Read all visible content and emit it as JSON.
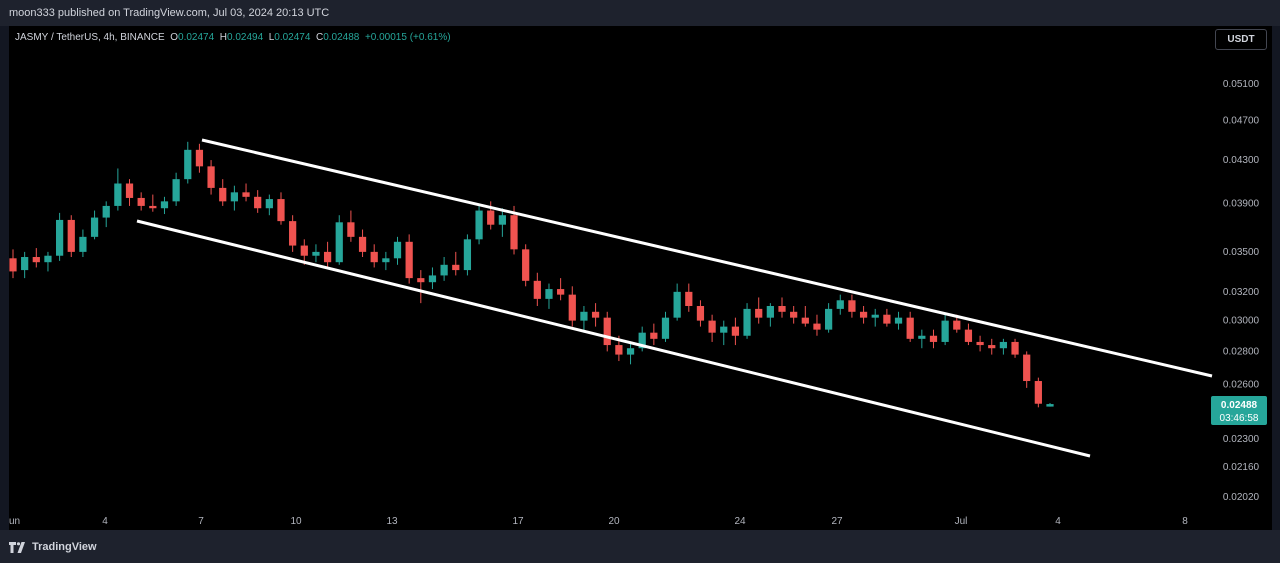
{
  "header": {
    "published_text": "moon333 published on TradingView.com, Jul 03, 2024 20:13 UTC"
  },
  "legend": {
    "symbol": "JASMY / TetherUS, 4h, BINANCE",
    "open_label": "O",
    "open": "0.02474",
    "high_label": "H",
    "high": "0.02494",
    "low_label": "L",
    "low": "0.02474",
    "close_label": "C",
    "close": "0.02488",
    "change": "+0.00015 (+0.61%)"
  },
  "unit_button": "USDT",
  "price_label": {
    "price": "0.02488",
    "countdown": "03:46:58",
    "color": "#26a69a"
  },
  "footer": {
    "brand": "TradingView"
  },
  "colors": {
    "up": "#26a69a",
    "down": "#ef5350",
    "background": "#000000",
    "trendline": "#ffffff"
  },
  "chart_data": {
    "type": "candlestick",
    "title": "JASMY / TetherUS, 4h, BINANCE",
    "y_scale": "log",
    "y_ticks": [
      "0.05100",
      "0.04700",
      "0.04300",
      "0.03900",
      "0.03500",
      "0.03200",
      "0.03000",
      "0.02800",
      "0.02600",
      "0.02300",
      "0.02160",
      "0.02020"
    ],
    "x_ticks": [
      "un",
      "4",
      "7",
      "10",
      "13",
      "17",
      "20",
      "24",
      "27",
      "Jul",
      "4",
      "8"
    ],
    "series": [
      {
        "values": [
          {
            "x": "Jun 2",
            "o": 0.0345,
            "h": 0.0352,
            "l": 0.033,
            "c": 0.0335
          },
          {
            "x": "Jun 3",
            "o": 0.0336,
            "h": 0.035,
            "l": 0.033,
            "c": 0.0346
          },
          {
            "x": "Jun 3",
            "o": 0.0346,
            "h": 0.0353,
            "l": 0.0338,
            "c": 0.0342
          },
          {
            "x": "Jun 3",
            "o": 0.0342,
            "h": 0.035,
            "l": 0.0335,
            "c": 0.0347
          },
          {
            "x": "Jun 4",
            "o": 0.0347,
            "h": 0.0382,
            "l": 0.0343,
            "c": 0.0376
          },
          {
            "x": "Jun 4",
            "o": 0.0376,
            "h": 0.038,
            "l": 0.0346,
            "c": 0.035
          },
          {
            "x": "Jun 4",
            "o": 0.035,
            "h": 0.0368,
            "l": 0.0346,
            "c": 0.0362
          },
          {
            "x": "Jun 5",
            "o": 0.0362,
            "h": 0.0384,
            "l": 0.036,
            "c": 0.0378
          },
          {
            "x": "Jun 5",
            "o": 0.0378,
            "h": 0.0392,
            "l": 0.037,
            "c": 0.0388
          },
          {
            "x": "Jun 5",
            "o": 0.0388,
            "h": 0.0422,
            "l": 0.0384,
            "c": 0.0408
          },
          {
            "x": "Jun 6",
            "o": 0.0408,
            "h": 0.0412,
            "l": 0.0388,
            "c": 0.0395
          },
          {
            "x": "Jun 6",
            "o": 0.0395,
            "h": 0.04,
            "l": 0.0384,
            "c": 0.0388
          },
          {
            "x": "Jun 6",
            "o": 0.0388,
            "h": 0.0398,
            "l": 0.0383,
            "c": 0.0386
          },
          {
            "x": "Jun 7",
            "o": 0.0386,
            "h": 0.0396,
            "l": 0.0381,
            "c": 0.0392
          },
          {
            "x": "Jun 7",
            "o": 0.0392,
            "h": 0.0418,
            "l": 0.0388,
            "c": 0.0412
          },
          {
            "x": "Jun 7",
            "o": 0.0412,
            "h": 0.0448,
            "l": 0.0408,
            "c": 0.044
          },
          {
            "x": "Jun 8",
            "o": 0.044,
            "h": 0.0446,
            "l": 0.0418,
            "c": 0.0424
          },
          {
            "x": "Jun 8",
            "o": 0.0424,
            "h": 0.043,
            "l": 0.0398,
            "c": 0.0404
          },
          {
            "x": "Jun 8",
            "o": 0.0404,
            "h": 0.0412,
            "l": 0.0388,
            "c": 0.0392
          },
          {
            "x": "Jun 9",
            "o": 0.0392,
            "h": 0.0406,
            "l": 0.0384,
            "c": 0.04
          },
          {
            "x": "Jun 9",
            "o": 0.04,
            "h": 0.0408,
            "l": 0.0392,
            "c": 0.0396
          },
          {
            "x": "Jun 10",
            "o": 0.0396,
            "h": 0.0402,
            "l": 0.0382,
            "c": 0.0386
          },
          {
            "x": "Jun 10",
            "o": 0.0386,
            "h": 0.0398,
            "l": 0.038,
            "c": 0.0394
          },
          {
            "x": "Jun 11",
            "o": 0.0394,
            "h": 0.04,
            "l": 0.0372,
            "c": 0.0375
          },
          {
            "x": "Jun 11",
            "o": 0.0375,
            "h": 0.038,
            "l": 0.035,
            "c": 0.0355
          },
          {
            "x": "Jun 11",
            "o": 0.0355,
            "h": 0.036,
            "l": 0.034,
            "c": 0.0347
          },
          {
            "x": "Jun 12",
            "o": 0.0347,
            "h": 0.0356,
            "l": 0.0342,
            "c": 0.035
          },
          {
            "x": "Jun 12",
            "o": 0.035,
            "h": 0.0358,
            "l": 0.0338,
            "c": 0.0342
          },
          {
            "x": "Jun 13",
            "o": 0.0342,
            "h": 0.038,
            "l": 0.034,
            "c": 0.0374
          },
          {
            "x": "Jun 13",
            "o": 0.0374,
            "h": 0.0384,
            "l": 0.0358,
            "c": 0.0362
          },
          {
            "x": "Jun 13",
            "o": 0.0362,
            "h": 0.0368,
            "l": 0.0346,
            "c": 0.035
          },
          {
            "x": "Jun 14",
            "o": 0.035,
            "h": 0.0356,
            "l": 0.0338,
            "c": 0.0342
          },
          {
            "x": "Jun 14",
            "o": 0.0342,
            "h": 0.035,
            "l": 0.0336,
            "c": 0.0345
          },
          {
            "x": "Jun 14",
            "o": 0.0345,
            "h": 0.0362,
            "l": 0.034,
            "c": 0.0358
          },
          {
            "x": "Jun 15",
            "o": 0.0358,
            "h": 0.0364,
            "l": 0.0326,
            "c": 0.033
          },
          {
            "x": "Jun 15",
            "o": 0.033,
            "h": 0.0336,
            "l": 0.0312,
            "c": 0.0327
          },
          {
            "x": "Jun 16",
            "o": 0.0327,
            "h": 0.0338,
            "l": 0.0322,
            "c": 0.0332
          },
          {
            "x": "Jun 16",
            "o": 0.0332,
            "h": 0.0346,
            "l": 0.0328,
            "c": 0.034
          },
          {
            "x": "Jun 16",
            "o": 0.034,
            "h": 0.035,
            "l": 0.0332,
            "c": 0.0336
          },
          {
            "x": "Jun 17",
            "o": 0.0336,
            "h": 0.0364,
            "l": 0.0332,
            "c": 0.036
          },
          {
            "x": "Jun 17",
            "o": 0.036,
            "h": 0.0388,
            "l": 0.0356,
            "c": 0.0384
          },
          {
            "x": "Jun 17",
            "o": 0.0384,
            "h": 0.0392,
            "l": 0.0368,
            "c": 0.0372
          },
          {
            "x": "Jun 18",
            "o": 0.0372,
            "h": 0.0386,
            "l": 0.0362,
            "c": 0.038
          },
          {
            "x": "Jun 18",
            "o": 0.038,
            "h": 0.0388,
            "l": 0.0348,
            "c": 0.0352
          },
          {
            "x": "Jun 18",
            "o": 0.0352,
            "h": 0.0356,
            "l": 0.0324,
            "c": 0.0328
          },
          {
            "x": "Jun 19",
            "o": 0.0328,
            "h": 0.0334,
            "l": 0.031,
            "c": 0.0315
          },
          {
            "x": "Jun 19",
            "o": 0.0315,
            "h": 0.0326,
            "l": 0.0308,
            "c": 0.0322
          },
          {
            "x": "Jun 19",
            "o": 0.0322,
            "h": 0.033,
            "l": 0.0314,
            "c": 0.0318
          },
          {
            "x": "Jun 20",
            "o": 0.0318,
            "h": 0.0324,
            "l": 0.0296,
            "c": 0.03
          },
          {
            "x": "Jun 20",
            "o": 0.03,
            "h": 0.031,
            "l": 0.0292,
            "c": 0.0306
          },
          {
            "x": "Jun 20",
            "o": 0.0306,
            "h": 0.0312,
            "l": 0.0296,
            "c": 0.0302
          },
          {
            "x": "Jun 21",
            "o": 0.0302,
            "h": 0.0306,
            "l": 0.028,
            "c": 0.0284
          },
          {
            "x": "Jun 21",
            "o": 0.0284,
            "h": 0.029,
            "l": 0.0274,
            "c": 0.0278
          },
          {
            "x": "Jun 21",
            "o": 0.0278,
            "h": 0.0286,
            "l": 0.0272,
            "c": 0.0282
          },
          {
            "x": "Jun 22",
            "o": 0.0282,
            "h": 0.0296,
            "l": 0.028,
            "c": 0.0292
          },
          {
            "x": "Jun 22",
            "o": 0.0292,
            "h": 0.0298,
            "l": 0.0284,
            "c": 0.0288
          },
          {
            "x": "Jun 23",
            "o": 0.0288,
            "h": 0.0306,
            "l": 0.0286,
            "c": 0.0302
          },
          {
            "x": "Jun 23",
            "o": 0.0302,
            "h": 0.0326,
            "l": 0.03,
            "c": 0.032
          },
          {
            "x": "Jun 23",
            "o": 0.032,
            "h": 0.0326,
            "l": 0.0306,
            "c": 0.031
          },
          {
            "x": "Jun 24",
            "o": 0.031,
            "h": 0.0314,
            "l": 0.0296,
            "c": 0.03
          },
          {
            "x": "Jun 24",
            "o": 0.03,
            "h": 0.0304,
            "l": 0.0286,
            "c": 0.0292
          },
          {
            "x": "Jun 24",
            "o": 0.0292,
            "h": 0.03,
            "l": 0.0284,
            "c": 0.0296
          },
          {
            "x": "Jun 25",
            "o": 0.0296,
            "h": 0.0302,
            "l": 0.0284,
            "c": 0.029
          },
          {
            "x": "Jun 25",
            "o": 0.029,
            "h": 0.0312,
            "l": 0.0288,
            "c": 0.0308
          },
          {
            "x": "Jun 25",
            "o": 0.0308,
            "h": 0.0316,
            "l": 0.0298,
            "c": 0.0302
          },
          {
            "x": "Jun 26",
            "o": 0.0302,
            "h": 0.0312,
            "l": 0.0296,
            "c": 0.031
          },
          {
            "x": "Jun 26",
            "o": 0.031,
            "h": 0.0316,
            "l": 0.0302,
            "c": 0.0306
          },
          {
            "x": "Jun 26",
            "o": 0.0306,
            "h": 0.031,
            "l": 0.0298,
            "c": 0.0302
          },
          {
            "x": "Jun 27",
            "o": 0.0302,
            "h": 0.031,
            "l": 0.0296,
            "c": 0.0298
          },
          {
            "x": "Jun 27",
            "o": 0.0298,
            "h": 0.0304,
            "l": 0.029,
            "c": 0.0294
          },
          {
            "x": "Jun 27",
            "o": 0.0294,
            "h": 0.0312,
            "l": 0.0292,
            "c": 0.0308
          },
          {
            "x": "Jun 28",
            "o": 0.0308,
            "h": 0.0318,
            "l": 0.0304,
            "c": 0.0314
          },
          {
            "x": "Jun 28",
            "o": 0.0314,
            "h": 0.0318,
            "l": 0.0302,
            "c": 0.0306
          },
          {
            "x": "Jun 28",
            "o": 0.0306,
            "h": 0.031,
            "l": 0.0298,
            "c": 0.0302
          },
          {
            "x": "Jun 29",
            "o": 0.0302,
            "h": 0.0308,
            "l": 0.0296,
            "c": 0.0304
          },
          {
            "x": "Jun 29",
            "o": 0.0304,
            "h": 0.0308,
            "l": 0.0296,
            "c": 0.0298
          },
          {
            "x": "Jun 29",
            "o": 0.0298,
            "h": 0.0306,
            "l": 0.0294,
            "c": 0.0302
          },
          {
            "x": "Jun 30",
            "o": 0.0302,
            "h": 0.0306,
            "l": 0.0286,
            "c": 0.0288
          },
          {
            "x": "Jun 30",
            "o": 0.0288,
            "h": 0.0294,
            "l": 0.0282,
            "c": 0.029
          },
          {
            "x": "Jun 30",
            "o": 0.029,
            "h": 0.0294,
            "l": 0.0282,
            "c": 0.0286
          },
          {
            "x": "Jul 1",
            "o": 0.0286,
            "h": 0.0304,
            "l": 0.0284,
            "c": 0.03
          },
          {
            "x": "Jul 1",
            "o": 0.03,
            "h": 0.0304,
            "l": 0.0292,
            "c": 0.0294
          },
          {
            "x": "Jul 1",
            "o": 0.0294,
            "h": 0.0298,
            "l": 0.0284,
            "c": 0.0286
          },
          {
            "x": "Jul 2",
            "o": 0.0286,
            "h": 0.029,
            "l": 0.028,
            "c": 0.0284
          },
          {
            "x": "Jul 2",
            "o": 0.0284,
            "h": 0.0288,
            "l": 0.0278,
            "c": 0.0282
          },
          {
            "x": "Jul 2",
            "o": 0.0282,
            "h": 0.0288,
            "l": 0.0278,
            "c": 0.0286
          },
          {
            "x": "Jul 3",
            "o": 0.0286,
            "h": 0.0288,
            "l": 0.0276,
            "c": 0.0278
          },
          {
            "x": "Jul 3",
            "o": 0.0278,
            "h": 0.028,
            "l": 0.0258,
            "c": 0.0262
          },
          {
            "x": "Jul 3",
            "o": 0.0262,
            "h": 0.0264,
            "l": 0.0247,
            "c": 0.0249
          },
          {
            "x": "Jul 3",
            "o": 0.02474,
            "h": 0.02494,
            "l": 0.02474,
            "c": 0.02488
          }
        ]
      }
    ],
    "annotations": [
      {
        "type": "trendline",
        "label": "upper channel line"
      },
      {
        "type": "trendline",
        "label": "lower channel line"
      }
    ]
  }
}
